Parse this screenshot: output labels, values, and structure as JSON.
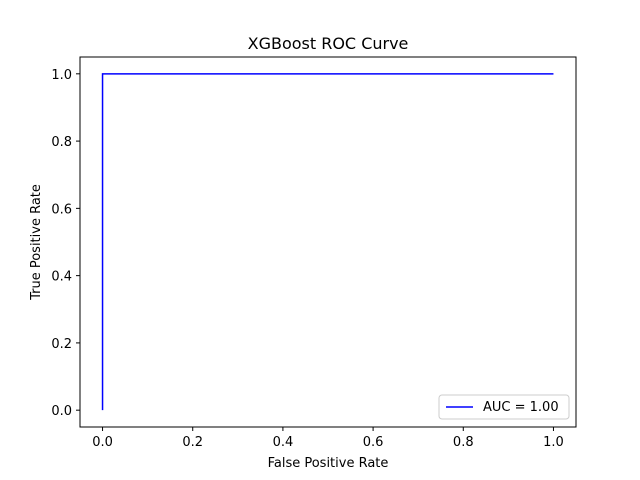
{
  "chart_data": {
    "type": "line",
    "title": "XGBoost ROC Curve",
    "xlabel": "False Positive Rate",
    "ylabel": "True Positive Rate",
    "xlim": [
      -0.05,
      1.05
    ],
    "ylim": [
      -0.05,
      1.05
    ],
    "xticks": [
      0.0,
      0.2,
      0.4,
      0.6,
      0.8,
      1.0
    ],
    "yticks": [
      0.0,
      0.2,
      0.4,
      0.6,
      0.8,
      1.0
    ],
    "xtick_labels": [
      "0.0",
      "0.2",
      "0.4",
      "0.6",
      "0.8",
      "1.0"
    ],
    "ytick_labels": [
      "0.0",
      "0.2",
      "0.4",
      "0.6",
      "0.8",
      "1.0"
    ],
    "grid": false,
    "legend_position": "lower-right",
    "series": [
      {
        "name": "AUC = 1.00",
        "color": "#0000ff",
        "x": [
          0.0,
          0.0,
          1.0
        ],
        "y": [
          0.0,
          1.0,
          1.0
        ]
      }
    ]
  }
}
